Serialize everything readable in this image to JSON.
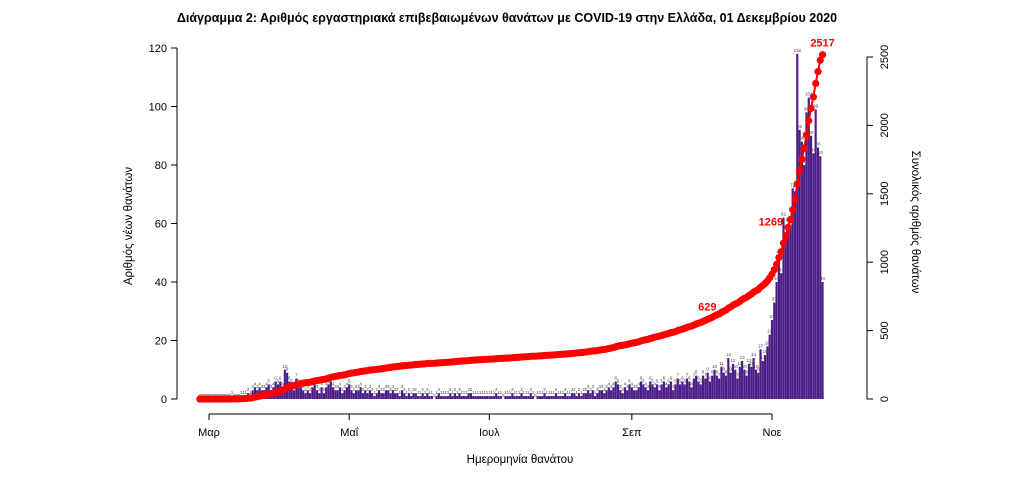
{
  "chart_data": {
    "type": "bar+line",
    "title": "Διάγραμμα 2: Αριθμός εργαστηριακά επιβεβαιωμένων θανάτων με COVID-19 στην Ελλάδα, 01 Δεκεμβρίου 2020",
    "xlabel": "Ημερομηνία θανάτου",
    "ylabel_left": "Αριθμός νέων θανάτων",
    "ylabel_right": "Συνολικός αριθμός θανάτων",
    "ylim_left": [
      0,
      120
    ],
    "ylim_right": [
      0,
      2500
    ],
    "yticks_left": [
      "0",
      "20",
      "40",
      "60",
      "80",
      "100",
      "120"
    ],
    "yticks_right": [
      "0",
      "500",
      "1000",
      "1500",
      "2000",
      "2500"
    ],
    "x_ticks": [
      {
        "label": "Μαρ",
        "day": 0
      },
      {
        "label": "Μαΐ",
        "day": 61
      },
      {
        "label": "Ιουλ",
        "day": 122
      },
      {
        "label": "Σεπ",
        "day": 184
      },
      {
        "label": "Νοε",
        "day": 245
      }
    ],
    "day_range": [
      -4,
      279
    ],
    "colors": {
      "bars": "#4b1d87",
      "cumulative": "#ff0000"
    },
    "callouts": [
      "629",
      "1269",
      "2517"
    ],
    "daily_deaths": [
      0,
      0,
      0,
      0,
      0,
      0,
      0,
      0,
      0,
      0,
      0,
      0,
      0,
      0,
      1,
      0,
      0,
      0,
      1,
      1,
      1,
      2,
      1,
      3,
      4,
      3,
      4,
      3,
      3,
      4,
      5,
      3,
      4,
      6,
      5,
      6,
      4,
      10,
      9,
      6,
      5,
      3,
      7,
      5,
      4,
      3,
      2,
      3,
      2,
      4,
      5,
      3,
      2,
      4,
      2,
      4,
      5,
      6,
      4,
      3,
      3,
      4,
      2,
      3,
      4,
      5,
      3,
      2,
      3,
      3,
      4,
      2,
      3,
      2,
      3,
      2,
      1,
      2,
      3,
      2,
      2,
      3,
      3,
      2,
      3,
      2,
      2,
      1,
      3,
      2,
      1,
      2,
      1,
      2,
      2,
      1,
      1,
      2,
      1,
      2,
      1,
      1,
      0,
      1,
      2,
      1,
      1,
      1,
      1,
      2,
      1,
      2,
      1,
      2,
      1,
      1,
      1,
      2,
      2,
      1,
      1,
      1,
      1,
      1,
      1,
      1,
      1,
      1,
      1,
      2,
      1,
      1,
      0,
      1,
      1,
      1,
      2,
      1,
      1,
      1,
      2,
      1,
      1,
      1,
      2,
      1,
      0,
      1,
      1,
      1,
      2,
      1,
      1,
      1,
      1,
      2,
      1,
      1,
      1,
      2,
      1,
      1,
      2,
      2,
      1,
      2,
      1,
      2,
      2,
      3,
      2,
      3,
      1,
      2,
      3,
      3,
      2,
      3,
      4,
      3,
      4,
      6,
      5,
      3,
      2,
      4,
      3,
      5,
      4,
      3,
      3,
      4,
      6,
      5,
      4,
      3,
      6,
      5,
      4,
      5,
      3,
      5,
      6,
      4,
      5,
      6,
      3,
      5,
      7,
      5,
      6,
      5,
      7,
      6,
      4,
      7,
      8,
      6,
      5,
      8,
      7,
      9,
      6,
      8,
      10,
      8,
      7,
      11,
      9,
      8,
      14,
      9,
      12,
      10,
      7,
      11,
      13,
      10,
      8,
      12,
      11,
      14,
      10,
      9,
      17,
      13,
      15,
      18,
      22,
      27,
      33,
      40,
      49,
      43,
      62,
      55,
      60,
      58,
      72,
      71,
      118,
      92,
      88,
      80,
      98,
      103,
      90,
      84,
      99,
      86,
      83,
      40
    ],
    "cumulative_deaths": [
      0,
      0,
      0,
      0,
      0,
      0,
      0,
      0,
      0,
      0,
      0,
      0,
      0,
      0,
      1,
      1,
      1,
      1,
      2,
      3,
      4,
      6,
      7,
      10,
      14,
      17,
      21,
      24,
      27,
      31,
      36,
      39,
      43,
      49,
      54,
      60,
      64,
      74,
      83,
      89,
      94,
      97,
      104,
      109,
      113,
      116,
      118,
      121,
      123,
      127,
      132,
      135,
      137,
      141,
      143,
      147,
      152,
      158,
      162,
      165,
      168,
      172,
      174,
      177,
      181,
      186,
      189,
      191,
      194,
      197,
      201,
      203,
      206,
      208,
      211,
      213,
      214,
      216,
      219,
      221,
      223,
      226,
      229,
      231,
      234,
      236,
      238,
      239,
      242,
      244,
      245,
      247,
      248,
      250,
      252,
      253,
      254,
      256,
      257,
      259,
      260,
      261,
      261,
      262,
      264,
      265,
      266,
      267,
      268,
      270,
      271,
      273,
      274,
      276,
      277,
      278,
      279,
      281,
      283,
      284,
      285,
      286,
      287,
      288,
      289,
      290,
      291,
      292,
      293,
      295,
      296,
      297,
      297,
      298,
      299,
      300,
      302,
      303,
      304,
      305,
      307,
      308,
      309,
      310,
      312,
      313,
      313,
      314,
      315,
      316,
      318,
      319,
      320,
      321,
      322,
      324,
      325,
      326,
      327,
      329,
      330,
      331,
      333,
      335,
      336,
      338,
      339,
      341,
      343,
      346,
      348,
      351,
      352,
      354,
      357,
      360,
      362,
      365,
      369,
      372,
      376,
      382,
      387,
      390,
      392,
      396,
      399,
      404,
      408,
      411,
      414,
      418,
      424,
      429,
      433,
      436,
      442,
      447,
      451,
      456,
      459,
      464,
      470,
      474,
      479,
      485,
      488,
      493,
      500,
      505,
      511,
      516,
      523,
      529,
      533,
      540,
      548,
      554,
      559,
      567,
      574,
      583,
      589,
      597,
      607,
      615,
      622,
      633,
      642,
      650,
      664,
      673,
      685,
      695,
      702,
      713,
      726,
      736,
      744,
      756,
      767,
      781,
      791,
      800,
      817,
      830,
      845,
      863,
      885,
      912,
      945,
      985,
      1034,
      1077,
      1139,
      1194,
      1254,
      1312,
      1384,
      1455,
      1573,
      1665,
      1753,
      1833,
      1931,
      2034,
      2124,
      2208,
      2307,
      2393,
      2476,
      2517
    ]
  }
}
